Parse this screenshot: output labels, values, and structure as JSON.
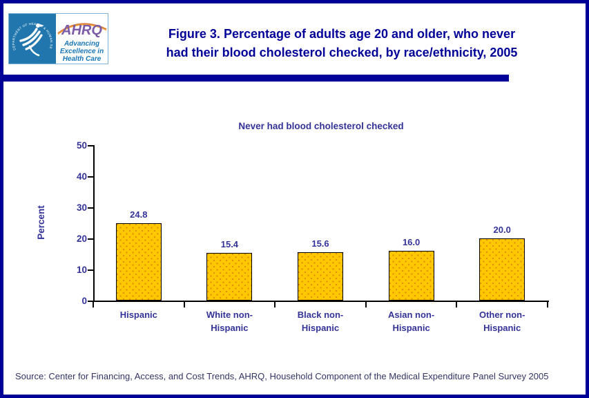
{
  "header": {
    "logo": {
      "hhs_seal_text": "DEPARTMENT OF HEALTH & HUMAN SERVICES • USA",
      "ahrq_acronym": "AHRQ",
      "ahrq_tagline_lines": [
        "Advancing",
        "Excellence in",
        "Health Care"
      ]
    },
    "title_line1": "Figure 3. Percentage of adults age 20 and older, who never",
    "title_line2": "had their blood cholesterol checked, by race/ethnicity, 2005"
  },
  "chart_data": {
    "type": "bar",
    "title": "Never had blood cholesterol checked",
    "xlabel": "",
    "ylabel": "Percent",
    "categories": [
      "Hispanic",
      "White non-Hispanic",
      "Black non-Hispanic",
      "Asian non-Hispanic",
      "Other non-Hispanic"
    ],
    "category_label_lines": [
      [
        "Hispanic"
      ],
      [
        "White non-",
        "Hispanic"
      ],
      [
        "Black non-",
        "Hispanic"
      ],
      [
        "Asian non-",
        "Hispanic"
      ],
      [
        "Other non-",
        "Hispanic"
      ]
    ],
    "values": [
      24.8,
      15.4,
      15.6,
      16.0,
      20.0
    ],
    "ylim": [
      0,
      50
    ],
    "yticks": [
      0,
      10,
      20,
      30,
      40,
      50
    ],
    "grid": false,
    "legend": "none",
    "bar_color": "#ffc800",
    "bar_border_color": "#000000",
    "label_color": "#333399"
  },
  "footer": {
    "source": "Source: Center for Financing, Access, and Cost Trends, AHRQ, Household Component of the Medical Expenditure Panel Survey 2005"
  },
  "colors": {
    "page_border": "#000099",
    "header_title": "#000099",
    "header_bar": "#000099",
    "chart_text": "#333399",
    "hhs_logo_blue": "#2076ad",
    "ahrq_purple": "#7c5ba8",
    "ahrq_teal": "#1877b4",
    "source_text": "#333366"
  }
}
